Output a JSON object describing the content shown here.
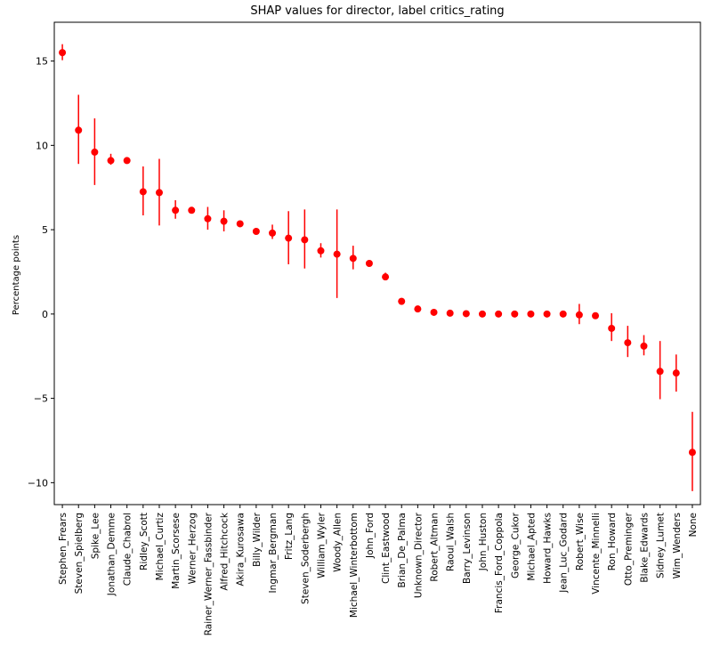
{
  "chart_data": {
    "type": "scatter",
    "title": "SHAP values for director, label critics_rating",
    "xlabel": "",
    "ylabel": "Percentage points",
    "ylim": [
      -11.3,
      17.3
    ],
    "yticks": [
      15,
      10,
      5,
      0,
      -5,
      -10
    ],
    "ytick_labels": [
      "15",
      "10",
      "5",
      "0",
      "−5",
      "−10"
    ],
    "grid": false,
    "marker_color": "#ff0000",
    "categories": [
      "Stephen_Frears",
      "Steven_Spielberg",
      "Spike_Lee",
      "Jonathan_Demme",
      "Claude_Chabrol",
      "Ridley_Scott",
      "Michael_Curtiz",
      "Martin_Scorsese",
      "Werner_Herzog",
      "Rainer_Werner_Fassbinder",
      "Alfred_Hitchcock",
      "Akira_Kurosawa",
      "Billy_Wilder",
      "Ingmar_Bergman",
      "Fritz_Lang",
      "Steven_Soderbergh",
      "William_Wyler",
      "Woody_Allen",
      "Michael_Winterbottom",
      "John_Ford",
      "Clint_Eastwood",
      "Brian_De_Palma",
      "Unknown_Director",
      "Robert_Altman",
      "Raoul_Walsh",
      "Barry_Levinson",
      "John_Huston",
      "Francis_Ford_Coppola",
      "George_Cukor",
      "Michael_Apted",
      "Howard_Hawks",
      "Jean_Luc_Godard",
      "Robert_Wise",
      "Vincente_Minnelli",
      "Ron_Howard",
      "Otto_Preminger",
      "Blake_Edwards",
      "Sidney_Lumet",
      "Wim_Wenders",
      "None"
    ],
    "values": [
      15.5,
      10.9,
      9.6,
      9.1,
      9.1,
      7.25,
      7.2,
      6.15,
      6.15,
      5.65,
      5.5,
      5.35,
      4.9,
      4.8,
      4.5,
      4.4,
      3.75,
      3.55,
      3.3,
      3.0,
      2.2,
      0.75,
      0.3,
      0.1,
      0.05,
      0.02,
      0.0,
      0.0,
      0.0,
      0.0,
      0.0,
      0.0,
      -0.05,
      -0.1,
      -0.85,
      -1.7,
      -1.9,
      -3.4,
      -3.5,
      -8.2
    ],
    "err_low": [
      15.05,
      8.9,
      7.65,
      8.85,
      8.95,
      5.85,
      5.25,
      5.65,
      6.0,
      5.0,
      4.9,
      5.25,
      4.8,
      4.45,
      2.95,
      2.7,
      3.35,
      0.95,
      2.65,
      2.9,
      2.0,
      0.6,
      0.25,
      0.05,
      0.0,
      -0.05,
      -0.05,
      -0.05,
      -0.05,
      -0.05,
      -0.05,
      -0.05,
      -0.6,
      -0.15,
      -1.6,
      -2.55,
      -2.45,
      -5.05,
      -4.6,
      -10.5
    ],
    "err_high": [
      16.0,
      13.0,
      11.6,
      9.5,
      9.25,
      8.75,
      9.2,
      6.75,
      6.35,
      6.35,
      6.15,
      5.5,
      5.0,
      5.3,
      6.1,
      6.2,
      4.2,
      6.2,
      4.05,
      3.15,
      2.45,
      0.95,
      0.35,
      0.15,
      0.1,
      0.05,
      0.05,
      0.05,
      0.05,
      0.05,
      0.05,
      0.05,
      0.6,
      -0.05,
      0.05,
      -0.7,
      -1.25,
      -1.6,
      -2.4,
      -5.8
    ]
  }
}
